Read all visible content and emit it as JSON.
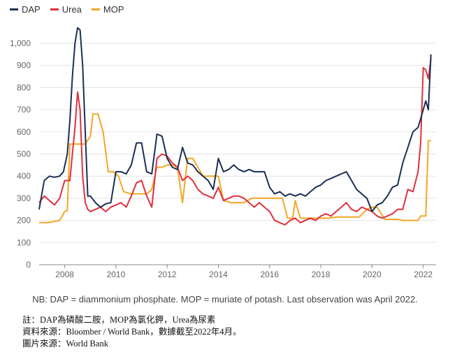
{
  "chart_data": {
    "type": "line",
    "title": "",
    "xlabel": "",
    "ylabel": "",
    "xlim": [
      2007.0,
      2022.5
    ],
    "ylim": [
      0,
      1000
    ],
    "yticks": [
      0,
      100,
      200,
      300,
      400,
      500,
      600,
      700,
      800,
      900,
      "1,000"
    ],
    "xticks": [
      "2008",
      "2010",
      "2012",
      "2014",
      "2016",
      "2018",
      "2020",
      "2022"
    ],
    "grid": "horizontal",
    "legend_position": "top-left",
    "series": [
      {
        "name": "DAP",
        "color": "#1b2f55",
        "x": [
          2007.0,
          2007.2,
          2007.4,
          2007.6,
          2007.8,
          2007.95,
          2008.1,
          2008.2,
          2008.3,
          2008.4,
          2008.5,
          2008.6,
          2008.7,
          2008.8,
          2008.9,
          2009.0,
          2009.2,
          2009.4,
          2009.6,
          2009.8,
          2010.0,
          2010.2,
          2010.4,
          2010.6,
          2010.8,
          2011.0,
          2011.2,
          2011.4,
          2011.6,
          2011.8,
          2012.0,
          2012.2,
          2012.4,
          2012.6,
          2012.8,
          2013.0,
          2013.2,
          2013.4,
          2013.6,
          2013.8,
          2014.0,
          2014.2,
          2014.4,
          2014.6,
          2014.8,
          2015.0,
          2015.2,
          2015.4,
          2015.6,
          2015.8,
          2016.0,
          2016.2,
          2016.4,
          2016.6,
          2016.8,
          2017.0,
          2017.2,
          2017.4,
          2017.6,
          2017.8,
          2018.0,
          2018.2,
          2018.4,
          2018.6,
          2018.8,
          2019.0,
          2019.2,
          2019.4,
          2019.6,
          2019.8,
          2020.0,
          2020.2,
          2020.4,
          2020.6,
          2020.8,
          2021.0,
          2021.2,
          2021.4,
          2021.6,
          2021.8,
          2022.0,
          2022.1,
          2022.2,
          2022.3
        ],
        "values": [
          250,
          380,
          400,
          395,
          400,
          420,
          500,
          650,
          850,
          1000,
          1070,
          1060,
          900,
          600,
          310,
          310,
          280,
          260,
          275,
          280,
          420,
          420,
          410,
          450,
          550,
          550,
          420,
          410,
          590,
          580,
          480,
          440,
          430,
          530,
          460,
          450,
          420,
          400,
          380,
          340,
          480,
          420,
          430,
          450,
          430,
          420,
          430,
          420,
          420,
          420,
          350,
          320,
          330,
          310,
          320,
          310,
          320,
          310,
          330,
          350,
          360,
          380,
          390,
          400,
          410,
          420,
          380,
          340,
          320,
          300,
          240,
          270,
          280,
          310,
          350,
          360,
          460,
          530,
          600,
          620,
          700,
          740,
          700,
          950
        ]
      },
      {
        "name": "Urea",
        "color": "#e0303d",
        "x": [
          2007.0,
          2007.2,
          2007.4,
          2007.6,
          2007.8,
          2008.0,
          2008.2,
          2008.3,
          2008.4,
          2008.5,
          2008.6,
          2008.7,
          2008.8,
          2008.9,
          2009.0,
          2009.2,
          2009.4,
          2009.6,
          2009.8,
          2010.0,
          2010.2,
          2010.4,
          2010.6,
          2010.8,
          2011.0,
          2011.2,
          2011.4,
          2011.6,
          2011.8,
          2012.0,
          2012.2,
          2012.4,
          2012.6,
          2012.8,
          2013.0,
          2013.2,
          2013.4,
          2013.6,
          2013.8,
          2014.0,
          2014.2,
          2014.4,
          2014.6,
          2014.8,
          2015.0,
          2015.2,
          2015.4,
          2015.6,
          2015.8,
          2016.0,
          2016.2,
          2016.4,
          2016.6,
          2016.8,
          2017.0,
          2017.2,
          2017.4,
          2017.6,
          2017.8,
          2018.0,
          2018.2,
          2018.4,
          2018.6,
          2018.8,
          2019.0,
          2019.2,
          2019.4,
          2019.6,
          2019.8,
          2020.0,
          2020.2,
          2020.4,
          2020.6,
          2020.8,
          2021.0,
          2021.2,
          2021.4,
          2021.6,
          2021.8,
          2021.9,
          2022.0,
          2022.1,
          2022.2,
          2022.3
        ],
        "values": [
          280,
          310,
          290,
          270,
          300,
          380,
          380,
          500,
          620,
          780,
          700,
          400,
          280,
          250,
          240,
          250,
          260,
          240,
          260,
          270,
          280,
          260,
          310,
          370,
          380,
          310,
          260,
          480,
          500,
          490,
          460,
          440,
          380,
          400,
          380,
          340,
          320,
          310,
          300,
          350,
          290,
          300,
          310,
          310,
          300,
          280,
          260,
          280,
          260,
          240,
          200,
          190,
          180,
          200,
          210,
          190,
          200,
          210,
          200,
          220,
          230,
          220,
          240,
          260,
          280,
          250,
          240,
          260,
          250,
          240,
          220,
          210,
          220,
          230,
          250,
          250,
          340,
          330,
          420,
          550,
          890,
          880,
          840,
          930
        ]
      },
      {
        "name": "MOP",
        "color": "#f5a623",
        "x": [
          2007.0,
          2007.3,
          2007.6,
          2007.8,
          2007.9,
          2008.0,
          2008.1,
          2008.2,
          2008.4,
          2008.6,
          2008.8,
          2009.0,
          2009.1,
          2009.3,
          2009.5,
          2009.7,
          2009.9,
          2010.1,
          2010.3,
          2010.6,
          2010.9,
          2011.2,
          2011.4,
          2011.6,
          2011.8,
          2012.0,
          2012.2,
          2012.4,
          2012.6,
          2012.8,
          2013.0,
          2013.2,
          2013.4,
          2013.6,
          2013.8,
          2014.0,
          2014.2,
          2014.5,
          2014.8,
          2015.0,
          2015.3,
          2015.6,
          2015.9,
          2016.1,
          2016.3,
          2016.5,
          2016.7,
          2016.9,
          2017.0,
          2017.2,
          2017.5,
          2017.8,
          2018.0,
          2018.3,
          2018.6,
          2018.9,
          2019.2,
          2019.5,
          2019.8,
          2020.0,
          2020.2,
          2020.5,
          2020.8,
          2021.0,
          2021.2,
          2021.4,
          2021.6,
          2021.8,
          2021.9,
          2022.0,
          2022.1,
          2022.2,
          2022.3
        ],
        "values": [
          190,
          190,
          195,
          200,
          220,
          240,
          245,
          545,
          545,
          545,
          545,
          580,
          680,
          680,
          600,
          420,
          420,
          400,
          330,
          320,
          320,
          320,
          340,
          440,
          440,
          450,
          450,
          440,
          280,
          480,
          480,
          440,
          400,
          400,
          400,
          400,
          290,
          280,
          280,
          280,
          300,
          300,
          300,
          300,
          300,
          300,
          210,
          210,
          290,
          210,
          210,
          210,
          210,
          210,
          215,
          215,
          215,
          215,
          250,
          260,
          260,
          205,
          205,
          205,
          200,
          200,
          200,
          200,
          220,
          220,
          220,
          560,
          560
        ]
      }
    ]
  },
  "note": "NB: DAP = diammonium phosphate. MOP = muriate of potash. Last observation was April 2022.",
  "caption_line1": "註：DAP為磷酸二胺，MOP為氯化鉀，Urea為尿素",
  "caption_line2": "資料來源：Bloomber / World Bank，數據截至2022年4月。",
  "caption_line3": "圖片來源：World Bank"
}
